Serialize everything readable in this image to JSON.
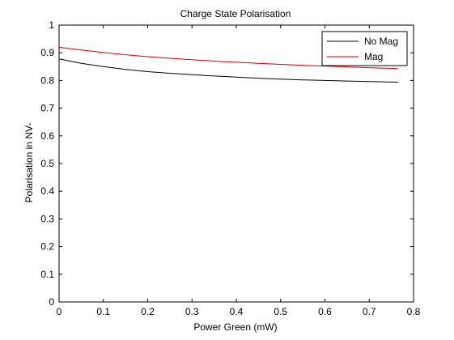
{
  "chart_data": {
    "type": "line",
    "title": "Charge State Polarisation",
    "xlabel": "Power Green (mW)",
    "ylabel": "Polarisation in NV-",
    "xlim": [
      0,
      0.8
    ],
    "ylim": [
      0,
      1
    ],
    "xticks": [
      0,
      0.1,
      0.2,
      0.3,
      0.4,
      0.5,
      0.6,
      0.7,
      0.8
    ],
    "yticks": [
      0,
      0.1,
      0.2,
      0.3,
      0.4,
      0.5,
      0.6,
      0.7,
      0.8,
      0.9,
      1
    ],
    "xtick_labels": [
      "0",
      "0.1",
      "0.2",
      "0.3",
      "0.4",
      "0.5",
      "0.6",
      "0.7",
      "0.8"
    ],
    "ytick_labels": [
      "0",
      "0.1",
      "0.2",
      "0.3",
      "0.4",
      "0.5",
      "0.6",
      "0.7",
      "0.8",
      "0.9",
      "1"
    ],
    "grid": false,
    "legend_position": "top-right",
    "series": [
      {
        "name": "No Mag",
        "color": "#000000",
        "x": [
          0,
          0.05,
          0.1,
          0.15,
          0.2,
          0.25,
          0.3,
          0.35,
          0.4,
          0.45,
          0.5,
          0.55,
          0.6,
          0.65,
          0.7,
          0.765
        ],
        "y": [
          0.878,
          0.862,
          0.85,
          0.84,
          0.832,
          0.826,
          0.821,
          0.816,
          0.812,
          0.808,
          0.805,
          0.802,
          0.8,
          0.798,
          0.796,
          0.794
        ]
      },
      {
        "name": "Mag",
        "color": "#d40000",
        "x": [
          0,
          0.05,
          0.1,
          0.15,
          0.2,
          0.25,
          0.3,
          0.35,
          0.4,
          0.45,
          0.5,
          0.55,
          0.6,
          0.65,
          0.7,
          0.765
        ],
        "y": [
          0.92,
          0.91,
          0.901,
          0.893,
          0.886,
          0.88,
          0.875,
          0.87,
          0.866,
          0.862,
          0.858,
          0.855,
          0.852,
          0.849,
          0.846,
          0.843
        ]
      }
    ]
  }
}
